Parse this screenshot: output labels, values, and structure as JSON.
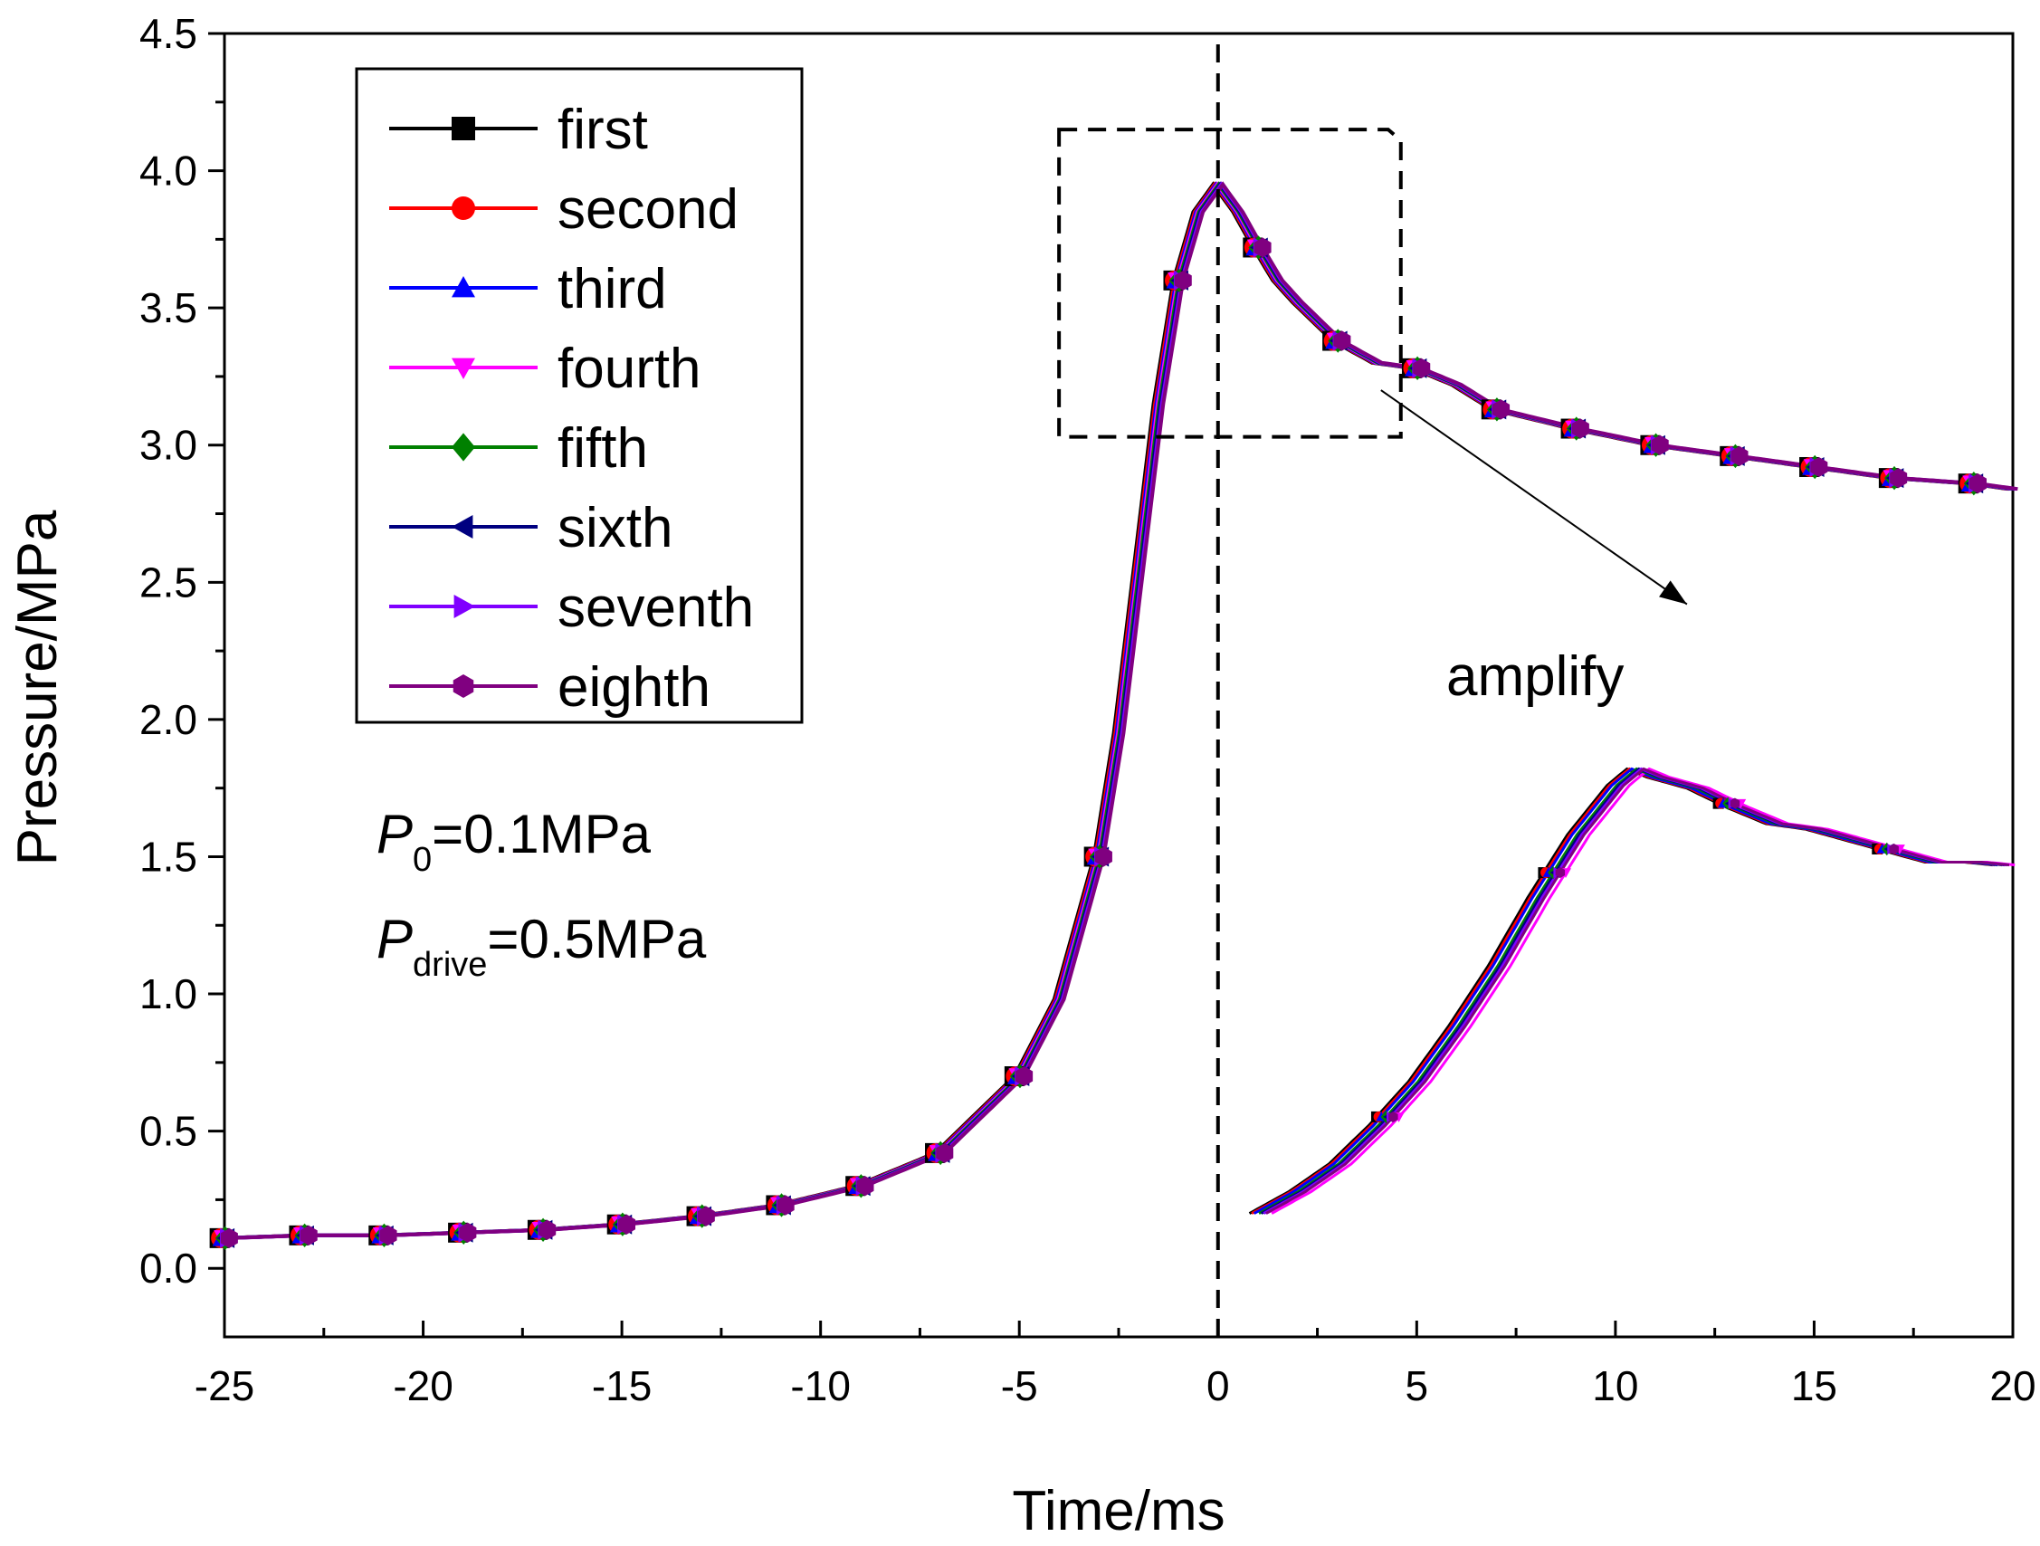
{
  "chart_data": {
    "type": "line",
    "xlabel": "Time/ms",
    "ylabel": "Pressure/MPa",
    "xlim": [
      -25,
      20
    ],
    "ylim": [
      -0.25,
      4.5
    ],
    "xticks": [
      -25,
      -20,
      -15,
      -10,
      -5,
      0,
      5,
      10,
      15,
      20
    ],
    "xtick_labels": [
      "-25",
      "-20",
      "-15",
      "-10",
      "-5",
      "0",
      "5",
      "10",
      "15",
      "20"
    ],
    "yticks": [
      0.0,
      0.5,
      1.0,
      1.5,
      2.0,
      2.5,
      3.0,
      3.5,
      4.0,
      4.5
    ],
    "ytick_labels": [
      "0.0",
      "0.5",
      "1.0",
      "1.5",
      "2.0",
      "2.5",
      "3.0",
      "3.5",
      "4.0",
      "4.5"
    ],
    "grid": false,
    "legend_position": "top-left",
    "annotations": {
      "p0_symbol": "P",
      "p0_sub": "0",
      "p0_value": "=0.1MPa",
      "pdrive_symbol": "P",
      "pdrive_sub": "drive",
      "pdrive_value": "=0.5MPa",
      "amplify_label": "amplify",
      "vertical_line_x": 0,
      "zoom_box": {
        "x": [
          -4.0,
          4.6
        ],
        "y": [
          3.03,
          4.15
        ]
      }
    },
    "inset": {
      "description": "amplified view of dashed region",
      "x_range": [
        1.0,
        19.7
      ],
      "y_range": [
        0.2,
        1.82
      ]
    },
    "series": [
      {
        "name": "first",
        "color": "#000000",
        "marker": "square"
      },
      {
        "name": "second",
        "color": "#ff0000",
        "marker": "circle"
      },
      {
        "name": "third",
        "color": "#0000ff",
        "marker": "triangle-up"
      },
      {
        "name": "fourth",
        "color": "#ff00ff",
        "marker": "triangle-down"
      },
      {
        "name": "fifth",
        "color": "#008000",
        "marker": "diamond"
      },
      {
        "name": "sixth",
        "color": "#000080",
        "marker": "triangle-left"
      },
      {
        "name": "seventh",
        "color": "#8000ff",
        "marker": "triangle-right"
      },
      {
        "name": "eighth",
        "color": "#800080",
        "marker": "hexagon"
      }
    ],
    "curve": {
      "x": [
        -25,
        -23,
        -21,
        -19,
        -17,
        -15,
        -13,
        -11,
        -9,
        -7,
        -5,
        -4,
        -3,
        -2.5,
        -2,
        -1.5,
        -1,
        -0.5,
        0,
        0.5,
        1,
        1.5,
        2,
        3,
        4,
        5,
        6,
        7,
        9,
        11,
        13,
        15,
        17,
        19,
        20
      ],
      "y": [
        0.11,
        0.12,
        0.12,
        0.13,
        0.14,
        0.16,
        0.19,
        0.23,
        0.3,
        0.42,
        0.7,
        0.98,
        1.5,
        1.95,
        2.55,
        3.15,
        3.6,
        3.85,
        3.95,
        3.85,
        3.72,
        3.6,
        3.52,
        3.38,
        3.3,
        3.28,
        3.22,
        3.13,
        3.06,
        3.0,
        2.96,
        2.92,
        2.88,
        2.86,
        2.84
      ]
    },
    "inset_curve": {
      "x": [
        1.0,
        2.0,
        3.0,
        4.0,
        5.0,
        6.0,
        7.0,
        8.0,
        9.0,
        10.0,
        10.5,
        11.0,
        12.0,
        13.0,
        14.0,
        15.0,
        16.0,
        17.0,
        18.0,
        19.0,
        19.7
      ],
      "y": [
        0.2,
        0.28,
        0.38,
        0.52,
        0.68,
        0.88,
        1.1,
        1.35,
        1.58,
        1.76,
        1.82,
        1.79,
        1.75,
        1.68,
        1.62,
        1.6,
        1.56,
        1.52,
        1.48,
        1.48,
        1.47
      ]
    },
    "marker_x": [
      -25,
      -23,
      -21,
      -19,
      -17,
      -15,
      -13,
      -11,
      -9,
      -7,
      -5,
      -3,
      -1,
      1,
      3,
      5,
      7,
      9,
      11,
      13,
      15,
      17,
      19
    ]
  }
}
